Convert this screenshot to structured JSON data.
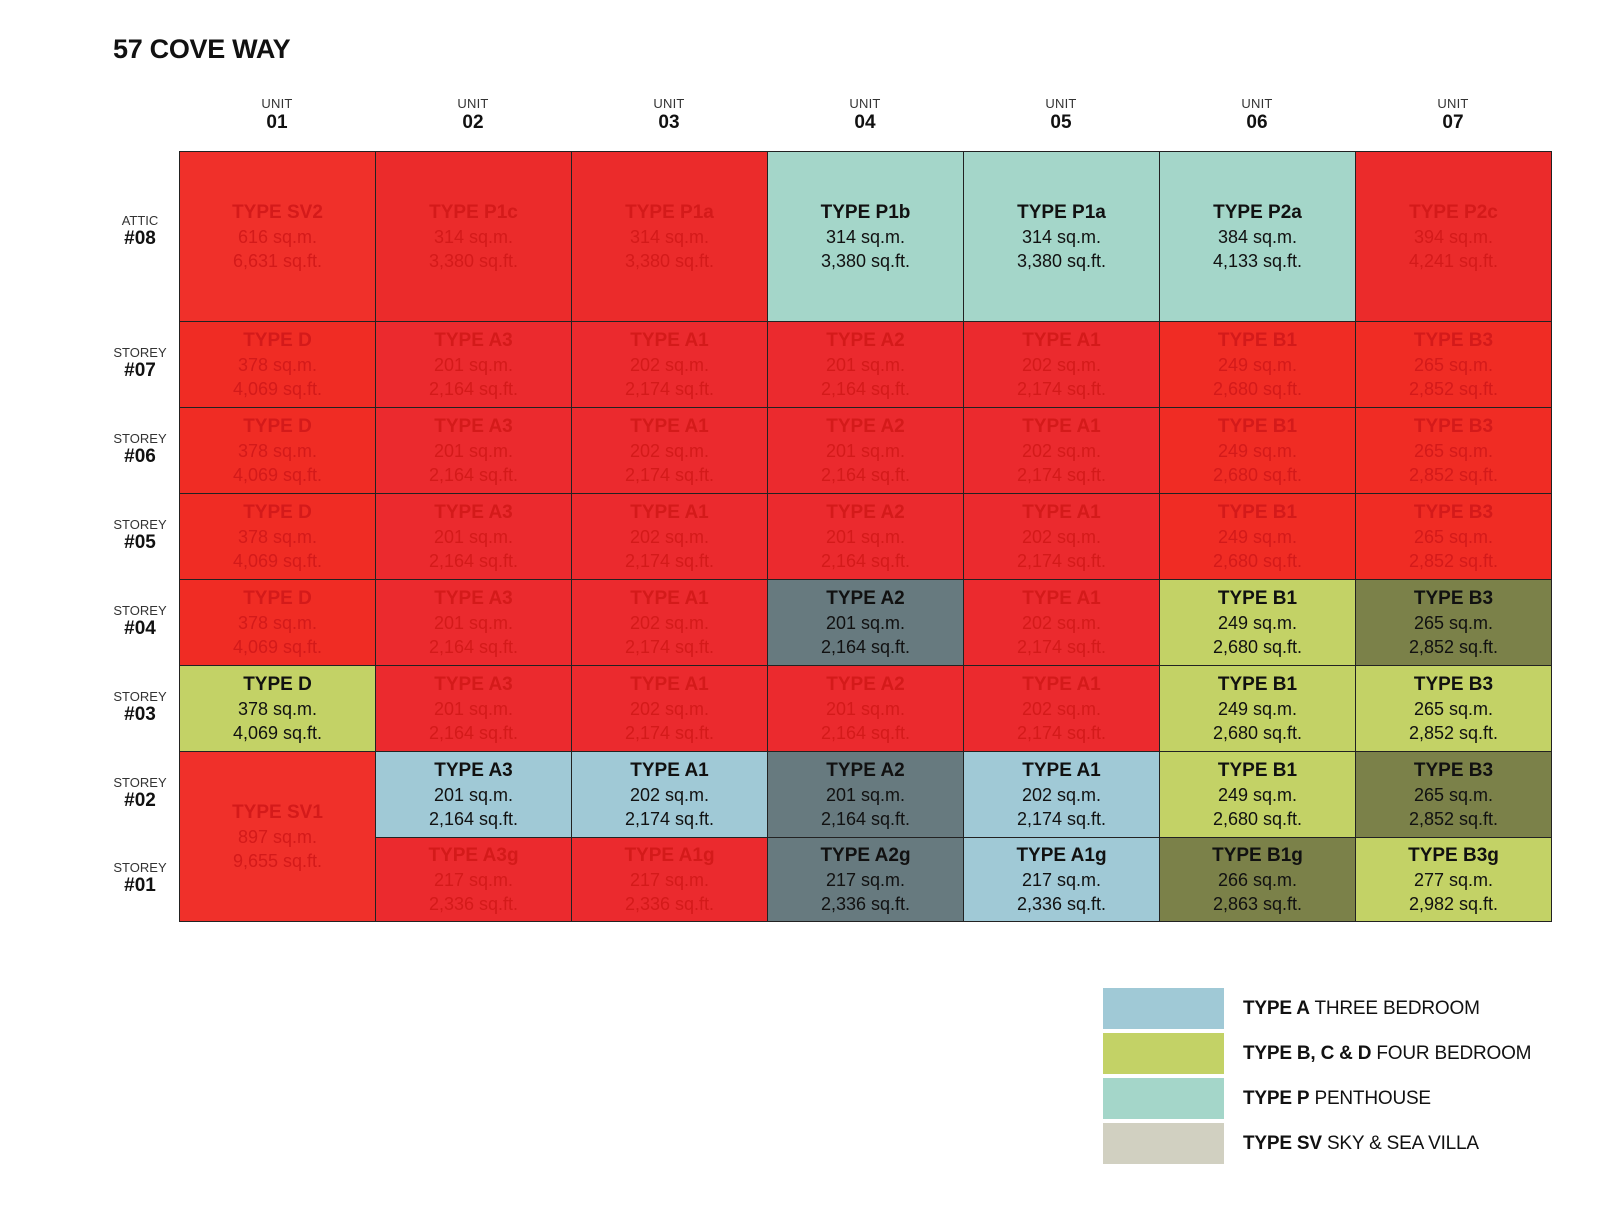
{
  "title": "57 COVE WAY",
  "colors": {
    "sold": "#ee2a2a",
    "sold_text": "#d41a1a",
    "type_a": "#a0c9d6",
    "type_bcd": "#c3d266",
    "type_p": "#a4d6c9",
    "type_sv": "#d1d0c1",
    "dark_slate": "#677a7f",
    "dark_olive": "#7b8149"
  },
  "columns": [
    {
      "word": "UNIT",
      "num": "01"
    },
    {
      "word": "UNIT",
      "num": "02"
    },
    {
      "word": "UNIT",
      "num": "03"
    },
    {
      "word": "UNIT",
      "num": "04"
    },
    {
      "word": "UNIT",
      "num": "05"
    },
    {
      "word": "UNIT",
      "num": "06"
    },
    {
      "word": "UNIT",
      "num": "07"
    }
  ],
  "rows": [
    {
      "word": "ATTIC",
      "num": "#08"
    },
    {
      "word": "STOREY",
      "num": "#07"
    },
    {
      "word": "STOREY",
      "num": "#06"
    },
    {
      "word": "STOREY",
      "num": "#05"
    },
    {
      "word": "STOREY",
      "num": "#04"
    },
    {
      "word": "STOREY",
      "num": "#03"
    },
    {
      "word": "STOREY",
      "num": "#02"
    },
    {
      "word": "STOREY",
      "num": "#01"
    }
  ],
  "cells": [
    {
      "type": "TYPE SV2",
      "sqm": "616 sq.m.",
      "sqft": "6,631 sq.ft.",
      "status": "sold",
      "bg": "#f0302a"
    },
    {
      "type": "TYPE P1c",
      "sqm": "314 sq.m.",
      "sqft": "3,380 sq.ft.",
      "status": "sold",
      "bg": "#eb2b2b"
    },
    {
      "type": "TYPE P1a",
      "sqm": "314 sq.m.",
      "sqft": "3,380 sq.ft.",
      "status": "sold",
      "bg": "#eb2b2b"
    },
    {
      "type": "TYPE P1b",
      "sqm": "314 sq.m.",
      "sqft": "3,380 sq.ft.",
      "status": "avail",
      "bg": "#a4d6c9"
    },
    {
      "type": "TYPE P1a",
      "sqm": "314 sq.m.",
      "sqft": "3,380 sq.ft.",
      "status": "avail",
      "bg": "#a4d6c9"
    },
    {
      "type": "TYPE P2a",
      "sqm": "384 sq.m.",
      "sqft": "4,133 sq.ft.",
      "status": "avail",
      "bg": "#a4d6c9"
    },
    {
      "type": "TYPE P2c",
      "sqm": "394 sq.m.",
      "sqft": "4,241 sq.ft.",
      "status": "sold",
      "bg": "#eb2b2b"
    },
    {
      "type": "TYPE D",
      "sqm": "378 sq.m.",
      "sqft": "4,069 sq.ft.",
      "status": "sold",
      "bg": "#f02c24"
    },
    {
      "type": "TYPE A3",
      "sqm": "201 sq.m.",
      "sqft": "2,164 sq.ft.",
      "status": "sold",
      "bg": "#eb2a2e"
    },
    {
      "type": "TYPE A1",
      "sqm": "202 sq.m.",
      "sqft": "2,174 sq.ft.",
      "status": "sold",
      "bg": "#eb2a2e"
    },
    {
      "type": "TYPE A2",
      "sqm": "201 sq.m.",
      "sqft": "2,164 sq.ft.",
      "status": "sold",
      "bg": "#eb2a2e"
    },
    {
      "type": "TYPE A1",
      "sqm": "202 sq.m.",
      "sqft": "2,174 sq.ft.",
      "status": "sold",
      "bg": "#eb2a2e"
    },
    {
      "type": "TYPE B1",
      "sqm": "249 sq.m.",
      "sqft": "2,680 sq.ft.",
      "status": "sold",
      "bg": "#f02c24"
    },
    {
      "type": "TYPE B3",
      "sqm": "265 sq.m.",
      "sqft": "2,852 sq.ft.",
      "status": "sold",
      "bg": "#f02c24"
    },
    {
      "type": "TYPE D",
      "sqm": "378 sq.m.",
      "sqft": "4,069 sq.ft.",
      "status": "sold",
      "bg": "#f02c24"
    },
    {
      "type": "TYPE A3",
      "sqm": "201 sq.m.",
      "sqft": "2,164 sq.ft.",
      "status": "sold",
      "bg": "#eb2a2e"
    },
    {
      "type": "TYPE A1",
      "sqm": "202 sq.m.",
      "sqft": "2,174 sq.ft.",
      "status": "sold",
      "bg": "#eb2a2e"
    },
    {
      "type": "TYPE A2",
      "sqm": "201 sq.m.",
      "sqft": "2,164 sq.ft.",
      "status": "sold",
      "bg": "#eb2a2e"
    },
    {
      "type": "TYPE A1",
      "sqm": "202 sq.m.",
      "sqft": "2,174 sq.ft.",
      "status": "sold",
      "bg": "#eb2a2e"
    },
    {
      "type": "TYPE B1",
      "sqm": "249 sq.m.",
      "sqft": "2,680 sq.ft.",
      "status": "sold",
      "bg": "#f02c24"
    },
    {
      "type": "TYPE B3",
      "sqm": "265 sq.m.",
      "sqft": "2,852 sq.ft.",
      "status": "sold",
      "bg": "#f02c24"
    },
    {
      "type": "TYPE D",
      "sqm": "378 sq.m.",
      "sqft": "4,069 sq.ft.",
      "status": "sold",
      "bg": "#f02c24"
    },
    {
      "type": "TYPE A3",
      "sqm": "201 sq.m.",
      "sqft": "2,164 sq.ft.",
      "status": "sold",
      "bg": "#eb2a2e"
    },
    {
      "type": "TYPE A1",
      "sqm": "202 sq.m.",
      "sqft": "2,174 sq.ft.",
      "status": "sold",
      "bg": "#eb2a2e"
    },
    {
      "type": "TYPE A2",
      "sqm": "201 sq.m.",
      "sqft": "2,164 sq.ft.",
      "status": "sold",
      "bg": "#eb2a2e"
    },
    {
      "type": "TYPE A1",
      "sqm": "202 sq.m.",
      "sqft": "2,174 sq.ft.",
      "status": "sold",
      "bg": "#eb2a2e"
    },
    {
      "type": "TYPE B1",
      "sqm": "249 sq.m.",
      "sqft": "2,680 sq.ft.",
      "status": "sold",
      "bg": "#f02c24"
    },
    {
      "type": "TYPE B3",
      "sqm": "265 sq.m.",
      "sqft": "2,852 sq.ft.",
      "status": "sold",
      "bg": "#f02c24"
    },
    {
      "type": "TYPE D",
      "sqm": "378 sq.m.",
      "sqft": "4,069 sq.ft.",
      "status": "sold",
      "bg": "#f02c24"
    },
    {
      "type": "TYPE A3",
      "sqm": "201 sq.m.",
      "sqft": "2,164 sq.ft.",
      "status": "sold",
      "bg": "#eb2a2e"
    },
    {
      "type": "TYPE A1",
      "sqm": "202 sq.m.",
      "sqft": "2,174 sq.ft.",
      "status": "sold",
      "bg": "#eb2a2e"
    },
    {
      "type": "TYPE A2",
      "sqm": "201 sq.m.",
      "sqft": "2,164 sq.ft.",
      "status": "avail",
      "bg": "#677a7f"
    },
    {
      "type": "TYPE A1",
      "sqm": "202 sq.m.",
      "sqft": "2,174 sq.ft.",
      "status": "sold",
      "bg": "#eb2a2e"
    },
    {
      "type": "TYPE B1",
      "sqm": "249 sq.m.",
      "sqft": "2,680 sq.ft.",
      "status": "avail",
      "bg": "#c3d266"
    },
    {
      "type": "TYPE B3",
      "sqm": "265 sq.m.",
      "sqft": "2,852 sq.ft.",
      "status": "avail",
      "bg": "#7b8149"
    },
    {
      "type": "TYPE D",
      "sqm": "378 sq.m.",
      "sqft": "4,069 sq.ft.",
      "status": "avail",
      "bg": "#c3d266"
    },
    {
      "type": "TYPE A3",
      "sqm": "201 sq.m.",
      "sqft": "2,164 sq.ft.",
      "status": "sold",
      "bg": "#eb2a2e"
    },
    {
      "type": "TYPE A1",
      "sqm": "202 sq.m.",
      "sqft": "2,174 sq.ft.",
      "status": "sold",
      "bg": "#eb2a2e"
    },
    {
      "type": "TYPE A2",
      "sqm": "201 sq.m.",
      "sqft": "2,164 sq.ft.",
      "status": "sold",
      "bg": "#eb2a2e"
    },
    {
      "type": "TYPE A1",
      "sqm": "202 sq.m.",
      "sqft": "2,174 sq.ft.",
      "status": "sold",
      "bg": "#eb2a2e"
    },
    {
      "type": "TYPE B1",
      "sqm": "249 sq.m.",
      "sqft": "2,680 sq.ft.",
      "status": "avail",
      "bg": "#c3d266"
    },
    {
      "type": "TYPE B3",
      "sqm": "265 sq.m.",
      "sqft": "2,852 sq.ft.",
      "status": "avail",
      "bg": "#c3d266"
    },
    {
      "type": "TYPE SV1",
      "sqm": "897 sq.m.",
      "sqft": "9,655 sq.ft.",
      "status": "sold",
      "bg": "#f0302a",
      "span": 2
    },
    {
      "type": "TYPE A3",
      "sqm": "201 sq.m.",
      "sqft": "2,164 sq.ft.",
      "status": "avail",
      "bg": "#a0c9d6"
    },
    {
      "type": "TYPE A1",
      "sqm": "202 sq.m.",
      "sqft": "2,174 sq.ft.",
      "status": "avail",
      "bg": "#a0c9d6"
    },
    {
      "type": "TYPE A2",
      "sqm": "201 sq.m.",
      "sqft": "2,164 sq.ft.",
      "status": "avail",
      "bg": "#677a7f"
    },
    {
      "type": "TYPE A1",
      "sqm": "202 sq.m.",
      "sqft": "2,174 sq.ft.",
      "status": "avail",
      "bg": "#a0c9d6"
    },
    {
      "type": "TYPE B1",
      "sqm": "249 sq.m.",
      "sqft": "2,680 sq.ft.",
      "status": "avail",
      "bg": "#c3d266"
    },
    {
      "type": "TYPE B3",
      "sqm": "265 sq.m.",
      "sqft": "2,852 sq.ft.",
      "status": "avail",
      "bg": "#7b8149"
    },
    {
      "type": "TYPE A3g",
      "sqm": "217 sq.m.",
      "sqft": "2,336 sq.ft.",
      "status": "sold",
      "bg": "#eb2a2e"
    },
    {
      "type": "TYPE A1g",
      "sqm": "217 sq.m.",
      "sqft": "2,336 sq.ft.",
      "status": "sold",
      "bg": "#eb2a2e"
    },
    {
      "type": "TYPE A2g",
      "sqm": "217 sq.m.",
      "sqft": "2,336 sq.ft.",
      "status": "avail",
      "bg": "#677a7f"
    },
    {
      "type": "TYPE A1g",
      "sqm": "217 sq.m.",
      "sqft": "2,336 sq.ft.",
      "status": "avail",
      "bg": "#a0c9d6"
    },
    {
      "type": "TYPE B1g",
      "sqm": "266 sq.m.",
      "sqft": "2,863 sq.ft.",
      "status": "avail",
      "bg": "#7b8149"
    },
    {
      "type": "TYPE B3g",
      "sqm": "277 sq.m.",
      "sqft": "2,982 sq.ft.",
      "status": "avail",
      "bg": "#c3d266"
    }
  ],
  "legend": [
    {
      "bold": "TYPE A",
      "rest": " THREE BEDROOM",
      "color": "#a0c9d6"
    },
    {
      "bold": "TYPE B, C & D",
      "rest": " FOUR BEDROOM",
      "color": "#c3d266"
    },
    {
      "bold": "TYPE P",
      "rest": " PENTHOUSE",
      "color": "#a4d6c9"
    },
    {
      "bold": "TYPE SV",
      "rest": " SKY & SEA VILLA",
      "color": "#d1d0c1"
    }
  ]
}
